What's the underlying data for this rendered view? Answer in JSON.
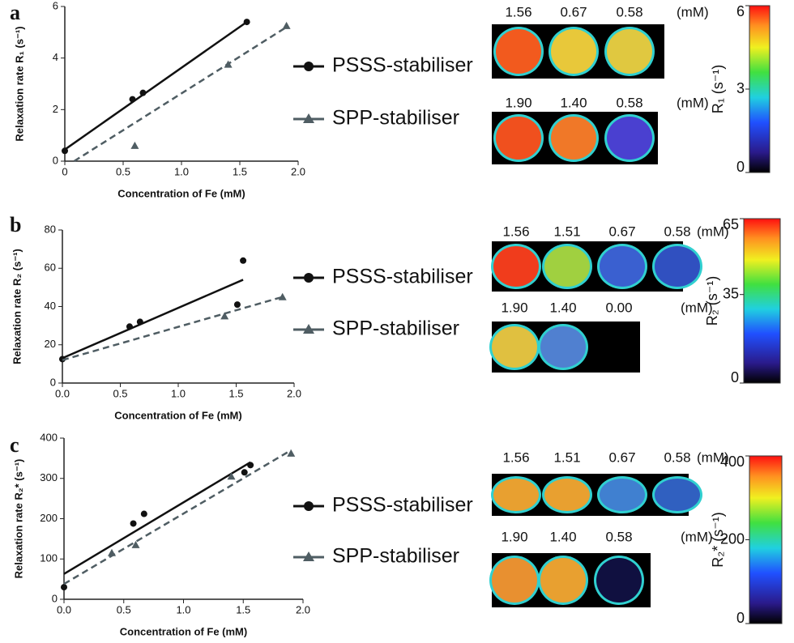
{
  "chart_data": [
    {
      "type": "scatter",
      "panel_label": "a",
      "x_label": "Concentration of Fe (mM)",
      "y_label": "Relaxation rate R₁ (s⁻¹)",
      "xlim": [
        0,
        2
      ],
      "xticks": [
        0,
        0.5,
        {
          "value": 1,
          "label": "1.0"
        },
        1.5,
        {
          "value": 2,
          "label": "2.0"
        }
      ],
      "ylim": [
        0,
        6
      ],
      "yticks": [
        0,
        2,
        4,
        6
      ],
      "series": [
        {
          "name": "PSSS-stabiliser",
          "color": "#111111",
          "marker": "circle",
          "linestyle": "solid",
          "x": [
            0,
            0.58,
            0.67,
            1.56
          ],
          "values": [
            0.4,
            2.4,
            2.65,
            5.4
          ],
          "fit": {
            "x": [
              0,
              1.56
            ],
            "values": [
              0.45,
              5.4
            ]
          }
        },
        {
          "name": "SPP-stabiliser",
          "color": "#4f5d63",
          "marker": "triangle",
          "linestyle": "dashed",
          "x": [
            0.6,
            1.4,
            1.9
          ],
          "values": [
            0.6,
            3.75,
            5.25
          ],
          "fit": {
            "x": [
              0.08,
              1.9
            ],
            "values": [
              0,
              5.2
            ]
          }
        }
      ],
      "images": [
        {
          "labels": [
            "1.56",
            "0.67",
            "0.58",
            "(mM)"
          ]
        },
        {
          "labels": [
            "1.90",
            "1.40",
            "0.58",
            "(mM)"
          ]
        }
      ],
      "colorbar": {
        "label": "R₁ (s⁻¹)",
        "lim": [
          0,
          6
        ],
        "ticks": [
          0,
          3,
          6
        ]
      }
    },
    {
      "type": "scatter",
      "panel_label": "b",
      "x_label": "Concentration of Fe (mM)",
      "y_label": "Relaxation rate R₂ (s⁻¹)",
      "xlim": [
        0,
        2
      ],
      "xticks": [
        {
          "value": 0,
          "label": "0.0"
        },
        0.5,
        {
          "value": 1,
          "label": "1.0"
        },
        1.5,
        {
          "value": 2,
          "label": "2.0"
        }
      ],
      "ylim": [
        0,
        80
      ],
      "yticks": [
        0,
        20,
        40,
        60,
        80
      ],
      "series": [
        {
          "name": "PSSS-stabiliser",
          "color": "#111111",
          "marker": "circle",
          "linestyle": "solid",
          "x": [
            0,
            0.58,
            0.67,
            1.51,
            1.56
          ],
          "values": [
            12.5,
            29.5,
            32,
            41,
            64
          ],
          "fit": {
            "x": [
              0,
              1.56
            ],
            "values": [
              13,
              54
            ]
          }
        },
        {
          "name": "SPP-stabiliser",
          "color": "#4f5d63",
          "marker": "triangle",
          "linestyle": "dashed",
          "x": [
            1.4,
            1.9
          ],
          "values": [
            35,
            45
          ],
          "fit": {
            "x": [
              0,
              1.9
            ],
            "values": [
              12,
              45
            ]
          }
        }
      ],
      "images": [
        {
          "labels": [
            "1.56",
            "1.51",
            "0.67",
            "0.58",
            "(mM)"
          ]
        },
        {
          "labels": [
            "1.90",
            "1.40",
            "0.00",
            "(mM)"
          ]
        }
      ],
      "colorbar": {
        "label": "R₂ (s⁻¹)",
        "lim": [
          0,
          65
        ],
        "ticks": [
          0,
          35,
          65
        ]
      }
    },
    {
      "type": "scatter",
      "panel_label": "c",
      "x_label": "Concentration of Fe (mM)",
      "y_label": "Relaxation rate R₂* (s⁻¹)",
      "xlim": [
        0,
        2
      ],
      "xticks": [
        {
          "value": 0,
          "label": "0.0"
        },
        0.5,
        {
          "value": 1,
          "label": "1.0"
        },
        1.5,
        {
          "value": 2,
          "label": "2.0"
        }
      ],
      "ylim": [
        0,
        400
      ],
      "yticks": [
        0,
        100,
        200,
        300,
        400
      ],
      "series": [
        {
          "name": "PSSS-stabiliser",
          "color": "#111111",
          "marker": "circle",
          "linestyle": "solid",
          "x": [
            0,
            0.58,
            0.67,
            1.51,
            1.56
          ],
          "values": [
            30,
            188,
            212,
            315,
            333
          ],
          "fit": {
            "x": [
              0,
              1.56
            ],
            "values": [
              63,
              340
            ]
          }
        },
        {
          "name": "SPP-stabiliser",
          "color": "#4f5d63",
          "marker": "triangle",
          "linestyle": "dashed",
          "x": [
            0.4,
            0.6,
            1.4,
            1.9
          ],
          "values": [
            115,
            135,
            305,
            362
          ],
          "fit": {
            "x": [
              0,
              1.9
            ],
            "values": [
              38,
              370
            ]
          }
        }
      ],
      "images": [
        {
          "labels": [
            "1.56",
            "1.51",
            "0.67",
            "0.58",
            "(mM)"
          ]
        },
        {
          "labels": [
            "1.90",
            "1.40",
            "0.58",
            "(mM)"
          ]
        }
      ],
      "colorbar": {
        "label": "R₂* (s⁻¹)",
        "lim": [
          0,
          400
        ],
        "ticks": [
          0,
          200,
          400
        ]
      }
    }
  ]
}
